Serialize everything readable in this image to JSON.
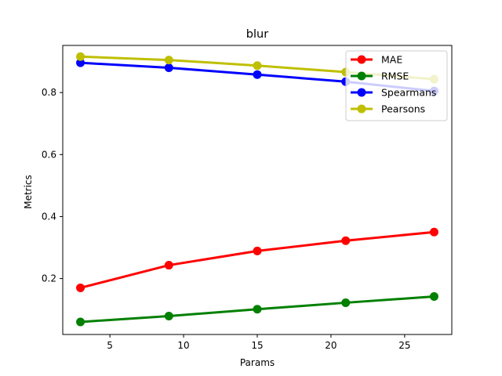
{
  "chart_data": {
    "type": "line",
    "title": "blur",
    "xlabel": "Params",
    "ylabel": "Metrics",
    "x": [
      3,
      9,
      15,
      21,
      27
    ],
    "xlim": [
      1.8,
      28.2
    ],
    "ylim": [
      0.0195,
      0.952
    ],
    "xticks": [
      5,
      10,
      15,
      20,
      25
    ],
    "xtick_labels": [
      "5",
      "10",
      "15",
      "20",
      "25"
    ],
    "yticks": [
      0.2,
      0.4,
      0.6,
      0.8
    ],
    "ytick_labels": [
      "0.2",
      "0.4",
      "0.6",
      "0.8"
    ],
    "grid": false,
    "legend_position": "top-right",
    "series": [
      {
        "name": "MAE",
        "color": "#ff0000",
        "values": [
          0.17,
          0.243,
          0.289,
          0.322,
          0.35
        ]
      },
      {
        "name": "RMSE",
        "color": "#008000",
        "values": [
          0.06,
          0.079,
          0.101,
          0.122,
          0.142
        ]
      },
      {
        "name": "Spearmans",
        "color": "#0000ff",
        "values": [
          0.896,
          0.88,
          0.858,
          0.835,
          0.805
        ]
      },
      {
        "name": "Pearsons",
        "color": "#bfbf00",
        "values": [
          0.916,
          0.905,
          0.887,
          0.866,
          0.843
        ]
      }
    ]
  }
}
